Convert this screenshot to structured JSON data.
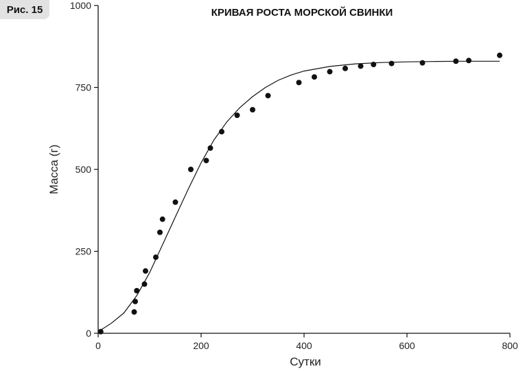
{
  "badge": "Рис. 15",
  "chart_data": {
    "type": "scatter",
    "title": "КРИВАЯ РОСТА МОРСКОЙ СВИНКИ",
    "xlabel": "Сутки",
    "ylabel": "Масса (г)",
    "xlim": [
      0,
      800
    ],
    "ylim": [
      0,
      1000
    ],
    "xticks": [
      0,
      200,
      400,
      600,
      800
    ],
    "yticks": [
      0,
      250,
      500,
      750,
      1000
    ],
    "grid": false,
    "marker_color": "#111111",
    "points": [
      {
        "x": 5,
        "y": 5
      },
      {
        "x": 70,
        "y": 65
      },
      {
        "x": 72,
        "y": 97
      },
      {
        "x": 75,
        "y": 130
      },
      {
        "x": 90,
        "y": 150
      },
      {
        "x": 92,
        "y": 190
      },
      {
        "x": 112,
        "y": 232
      },
      {
        "x": 120,
        "y": 308
      },
      {
        "x": 125,
        "y": 348
      },
      {
        "x": 150,
        "y": 400
      },
      {
        "x": 180,
        "y": 500
      },
      {
        "x": 210,
        "y": 527
      },
      {
        "x": 218,
        "y": 565
      },
      {
        "x": 240,
        "y": 615
      },
      {
        "x": 270,
        "y": 665
      },
      {
        "x": 300,
        "y": 682
      },
      {
        "x": 330,
        "y": 725
      },
      {
        "x": 390,
        "y": 765
      },
      {
        "x": 420,
        "y": 782
      },
      {
        "x": 450,
        "y": 798
      },
      {
        "x": 480,
        "y": 808
      },
      {
        "x": 510,
        "y": 815
      },
      {
        "x": 535,
        "y": 820
      },
      {
        "x": 570,
        "y": 823
      },
      {
        "x": 630,
        "y": 825
      },
      {
        "x": 695,
        "y": 830
      },
      {
        "x": 720,
        "y": 832
      },
      {
        "x": 780,
        "y": 848
      }
    ],
    "fit_curve": {
      "type": "logistic",
      "x": [
        0,
        25,
        50,
        75,
        100,
        125,
        150,
        175,
        200,
        225,
        250,
        275,
        300,
        325,
        350,
        375,
        400,
        450,
        500,
        550,
        600,
        650,
        700,
        750,
        780
      ],
      "y": [
        5,
        30,
        62,
        115,
        185,
        270,
        355,
        440,
        520,
        590,
        645,
        688,
        722,
        750,
        772,
        788,
        800,
        814,
        822,
        826,
        828,
        829,
        830,
        830,
        830
      ]
    }
  }
}
